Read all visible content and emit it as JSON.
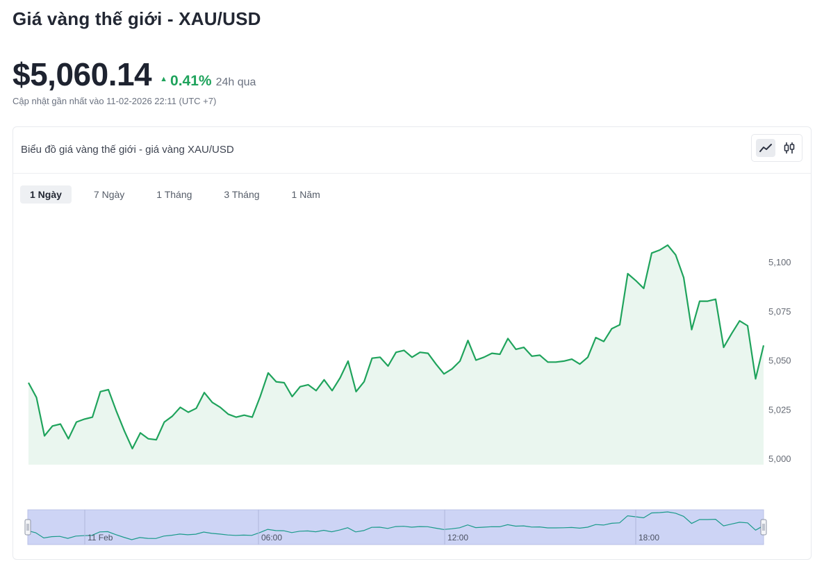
{
  "header": {
    "title": "Giá vàng thế giới - XAU/USD",
    "price": "$5,060.14",
    "change": "0.41%",
    "change_period": "24h qua",
    "updated": "Cập nhật gần nhất vào 11-02-2026 22:11 (UTC +7)"
  },
  "card": {
    "title": "Biểu đồ giá vàng thế giới - giá vàng XAU/USD",
    "toggle": [
      {
        "icon": "line-chart-icon",
        "active": true
      },
      {
        "icon": "candlestick-icon",
        "active": false
      }
    ],
    "tabs": [
      {
        "label": "1 Ngày",
        "active": true
      },
      {
        "label": "7 Ngày",
        "active": false
      },
      {
        "label": "1 Tháng",
        "active": false
      },
      {
        "label": "3 Tháng",
        "active": false
      },
      {
        "label": "1 Năm",
        "active": false
      }
    ]
  },
  "colors": {
    "line": "#1fa35c",
    "area": "#eaf6ef",
    "positive": "#1fa35c",
    "navigator_fill": "#cdd4f5",
    "navigator_line": "#1a9a8a"
  },
  "chart_data": {
    "type": "area",
    "title": "",
    "xlabel": "",
    "ylabel": "",
    "ylim": [
      5000,
      5110
    ],
    "y_ticks": [
      "5,000",
      "5,025",
      "5,050",
      "5,075",
      "5,100"
    ],
    "y_tick_values": [
      5000,
      5025,
      5050,
      5075,
      5100
    ],
    "y_axis_position": "right",
    "grid": false,
    "x_tick_labels": [
      "11 Feb",
      "06:00",
      "12:00",
      "18:00"
    ],
    "series": [
      {
        "values": [
          5038.5,
          5031.0,
          5011.5,
          5016.5,
          5017.5,
          5010.0,
          5018.5,
          5020.0,
          5021.0,
          5034.0,
          5035.0,
          5024.0,
          5014.0,
          5005.0,
          5013.0,
          5010.0,
          5009.5,
          5018.5,
          5021.5,
          5026.0,
          5023.5,
          5025.5,
          5033.5,
          5028.5,
          5026.0,
          5022.5,
          5021.0,
          5022.0,
          5021.0,
          5031.5,
          5043.5,
          5039.0,
          5038.5,
          5031.5,
          5036.5,
          5037.5,
          5034.5,
          5040.0,
          5034.5,
          5041.0,
          5049.5,
          5034.0,
          5039.0,
          5051.0,
          5051.5,
          5047.0,
          5054.0,
          5055.0,
          5051.5,
          5054.0,
          5053.5,
          5048.0,
          5043.0,
          5045.5,
          5049.5,
          5060.0,
          5050.0,
          5051.5,
          5053.5,
          5053.0,
          5061.0,
          5055.5,
          5056.5,
          5052.0,
          5052.5,
          5049.0,
          5049.0,
          5049.5,
          5050.5,
          5048.0,
          5051.5,
          5061.5,
          5059.5,
          5066.0,
          5068.0,
          5094.0,
          5090.5,
          5086.5,
          5104.5,
          5106.0,
          5108.5,
          5103.5,
          5092.0,
          5065.5,
          5080.0,
          5080.0,
          5081.0,
          5056.5,
          5063.5,
          5070.0,
          5067.5,
          5040.5,
          5057.5
        ]
      }
    ]
  }
}
